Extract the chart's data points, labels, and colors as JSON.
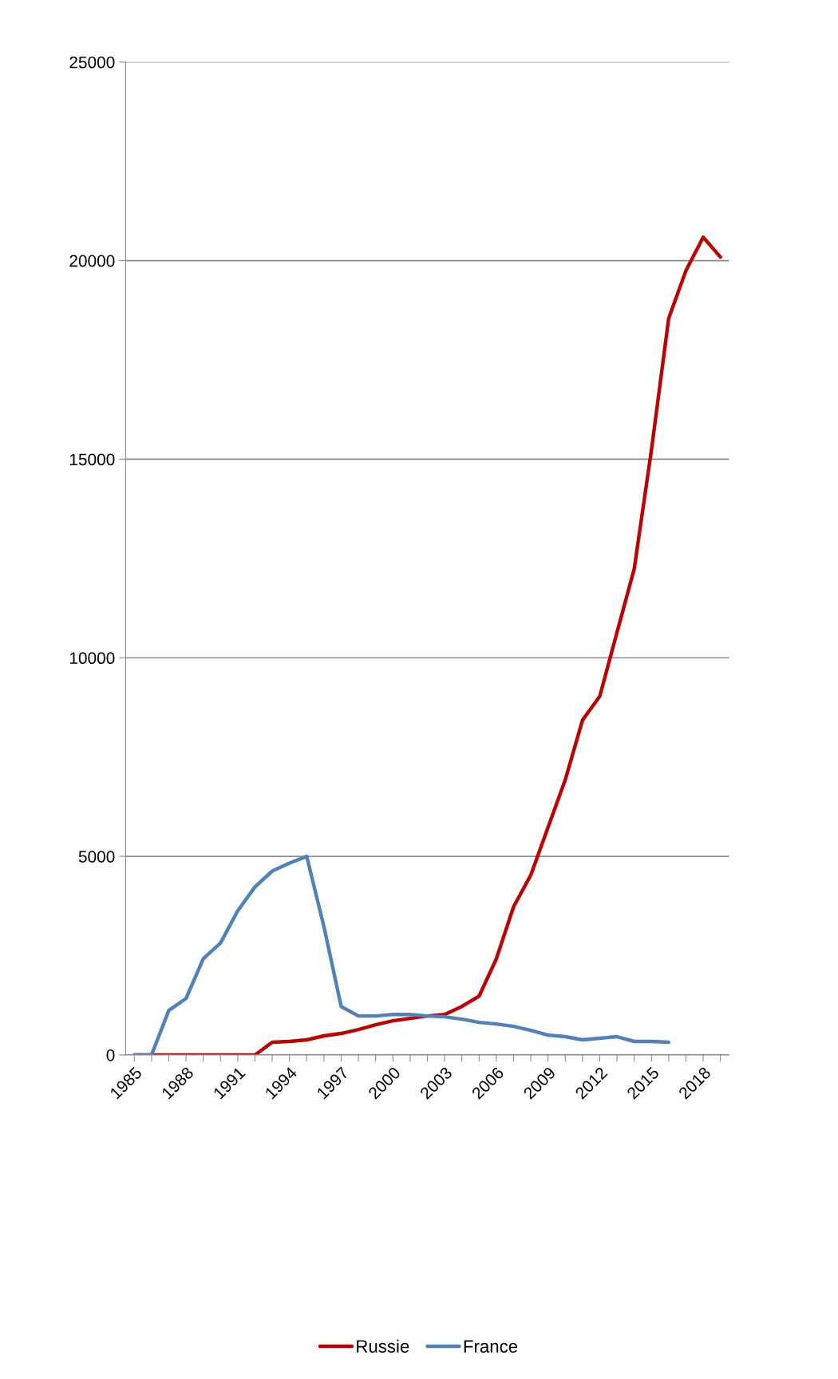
{
  "chart_data": {
    "type": "line",
    "categories": [
      "1985",
      null,
      null,
      "1988",
      null,
      null,
      "1991",
      null,
      null,
      "1994",
      null,
      null,
      "1997",
      null,
      null,
      "2000",
      null,
      null,
      "2003",
      null,
      null,
      "2006",
      null,
      null,
      "2009",
      null,
      null,
      "2012",
      null,
      null,
      "2015",
      null,
      null,
      "2018",
      null
    ],
    "series": [
      {
        "name": "Russie",
        "color": "#c00000",
        "values": [
          0,
          0,
          0,
          0,
          0,
          0,
          0,
          0,
          320,
          340,
          380,
          480,
          540,
          640,
          760,
          860,
          920,
          980,
          1020,
          1220,
          1480,
          2420,
          3730,
          4530,
          5730,
          6930,
          8430,
          9030,
          10640,
          12240,
          15240,
          18550,
          19750,
          20590,
          20090
        ]
      },
      {
        "name": "France",
        "color": "#4f81bd",
        "values": [
          0,
          0,
          1120,
          1420,
          2420,
          2820,
          3630,
          4230,
          4630,
          4830,
          5000,
          3230,
          1220,
          980,
          980,
          1020,
          1020,
          980,
          960,
          900,
          820,
          780,
          720,
          620,
          500,
          460,
          380,
          420,
          460,
          340,
          340,
          320,
          null,
          null,
          null
        ]
      }
    ],
    "ylim": [
      0,
      25000
    ],
    "yticks": [
      0,
      5000,
      10000,
      15000,
      20000,
      25000
    ],
    "grid": "y",
    "legend": "bottom",
    "marker": "none",
    "line_style": "solid"
  }
}
